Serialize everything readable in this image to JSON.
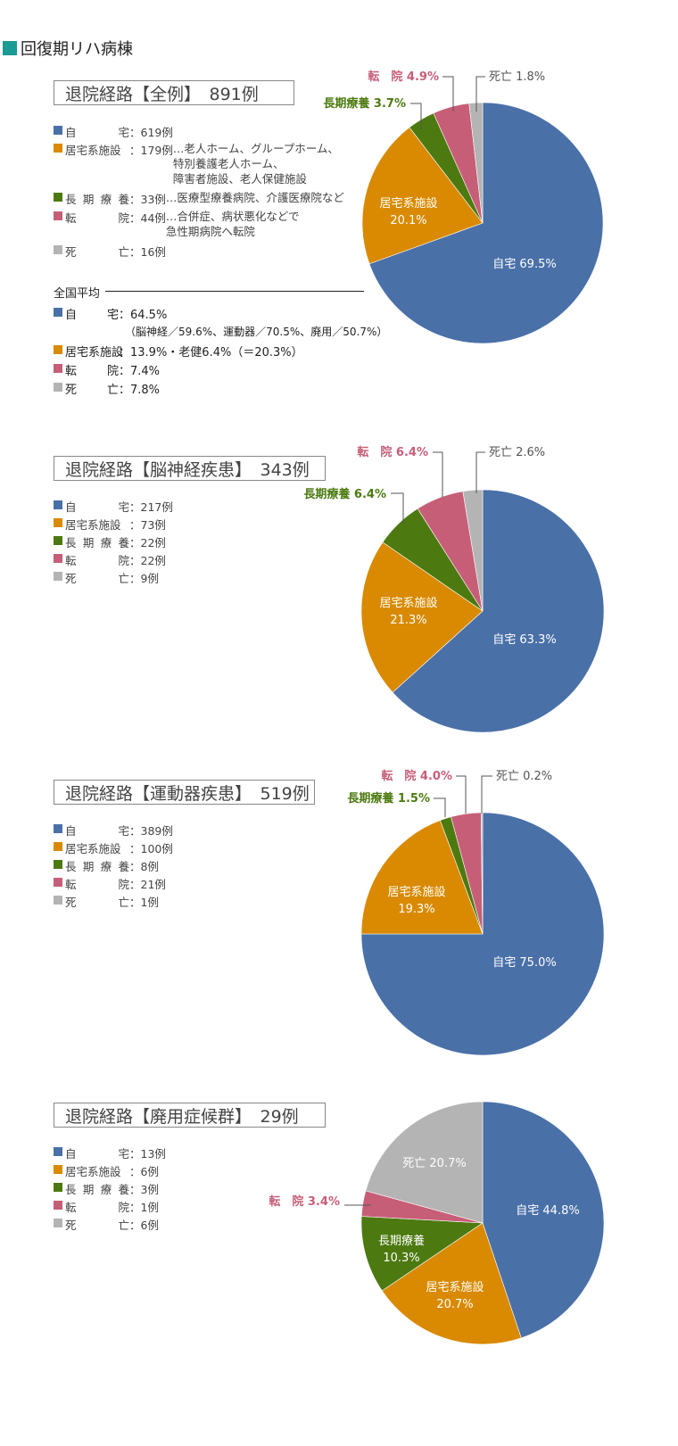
{
  "header": {
    "title": "回復期リハ病棟"
  },
  "colors": {
    "home": "#4a70a8",
    "facility": "#d98a00",
    "long": "#4c7a10",
    "transfer": "#c75e78",
    "death": "#b4b4b4",
    "accent": "#1a9b93"
  },
  "sections": [
    {
      "title": "退院経路【全例】　891例",
      "legend": [
        {
          "label": "自宅",
          "count": "：619例",
          "note": ""
        },
        {
          "label": "居宅系施設",
          "count": "：179例",
          "note": "…老人ホーム、グループホーム、\n特別養護老人ホーム、\n障害者施設、老人保健施設"
        },
        {
          "label": "長期療養",
          "count": "：33例",
          "note": "…医療型療養病院、介護医療院など"
        },
        {
          "label": "転院",
          "count": "：44例",
          "note": "…合併症、病状悪化などで\n急性期病院へ転院"
        },
        {
          "label": "死亡",
          "count": "：16例",
          "note": ""
        }
      ],
      "national_average": {
        "heading": "全国平均",
        "rows": [
          {
            "label": "自宅",
            "value": "：64.5%",
            "sub": "（脳神経／59.6%、運動器／70.5%、廃用／50.7%）"
          },
          {
            "label": "居宅系施設",
            "value": "：13.9%・老健6.4%（＝20.3%）",
            "sub": ""
          },
          {
            "label": "転院",
            "value": "：7.4%",
            "sub": ""
          },
          {
            "label": "死亡",
            "value": "：7.8%",
            "sub": ""
          }
        ]
      }
    },
    {
      "title": "退院経路【脳神経疾患】　343例",
      "legend": [
        {
          "label": "自宅",
          "count": "：217例",
          "note": ""
        },
        {
          "label": "居宅系施設",
          "count": "：73例",
          "note": ""
        },
        {
          "label": "長期療養",
          "count": "：22例",
          "note": ""
        },
        {
          "label": "転院",
          "count": "：22例",
          "note": ""
        },
        {
          "label": "死亡",
          "count": "：9例",
          "note": ""
        }
      ]
    },
    {
      "title": "退院経路【運動器疾患】　519例",
      "legend": [
        {
          "label": "自宅",
          "count": "：389例",
          "note": ""
        },
        {
          "label": "居宅系施設",
          "count": "：100例",
          "note": ""
        },
        {
          "label": "長期療養",
          "count": "：8例",
          "note": ""
        },
        {
          "label": "転院",
          "count": "：21例",
          "note": ""
        },
        {
          "label": "死亡",
          "count": "：1例",
          "note": ""
        }
      ]
    },
    {
      "title": "退院経路【廃用症候群】　29例",
      "legend": [
        {
          "label": "自宅",
          "count": "：13例",
          "note": ""
        },
        {
          "label": "居宅系施設",
          "count": "：6例",
          "note": ""
        },
        {
          "label": "長期療養",
          "count": "：3例",
          "note": ""
        },
        {
          "label": "転院",
          "count": "：1例",
          "note": ""
        },
        {
          "label": "死亡",
          "count": "：6例",
          "note": ""
        }
      ]
    }
  ],
  "chart_data": [
    {
      "type": "pie",
      "title": "退院経路【全例】　891例",
      "categories": [
        "自宅",
        "居宅系施設",
        "長期療養",
        "転院",
        "死亡"
      ],
      "values": [
        69.5,
        20.1,
        3.7,
        4.9,
        1.8
      ],
      "labels": [
        "自宅 69.5%",
        "居宅系施設\n20.1%",
        "長期療養 3.7%",
        "転　院 4.9%",
        "死亡 1.8%"
      ]
    },
    {
      "type": "pie",
      "title": "退院経路【脳神経疾患】　343例",
      "categories": [
        "自宅",
        "居宅系施設",
        "長期療養",
        "転院",
        "死亡"
      ],
      "values": [
        63.3,
        21.3,
        6.4,
        6.4,
        2.6
      ],
      "labels": [
        "自宅 63.3%",
        "居宅系施設\n21.3%",
        "長期療養 6.4%",
        "転　院 6.4%",
        "死亡 2.6%"
      ]
    },
    {
      "type": "pie",
      "title": "退院経路【運動器疾患】　519例",
      "categories": [
        "自宅",
        "居宅系施設",
        "長期療養",
        "転院",
        "死亡"
      ],
      "values": [
        75.0,
        19.3,
        1.5,
        4.0,
        0.2
      ],
      "labels": [
        "自宅 75.0%",
        "居宅系施設\n19.3%",
        "長期療養 1.5%",
        "転　院 4.0%",
        "死亡 0.2%"
      ]
    },
    {
      "type": "pie",
      "title": "退院経路【廃用症候群】　29例",
      "categories": [
        "自宅",
        "居宅系施設",
        "長期療養",
        "転院",
        "死亡"
      ],
      "values": [
        44.8,
        20.7,
        10.3,
        3.4,
        20.7
      ],
      "labels": [
        "自宅 44.8%",
        "居宅系施設\n20.7%",
        "長期療養\n10.3%",
        "転　院 3.4%",
        "死亡 20.7%"
      ]
    }
  ]
}
